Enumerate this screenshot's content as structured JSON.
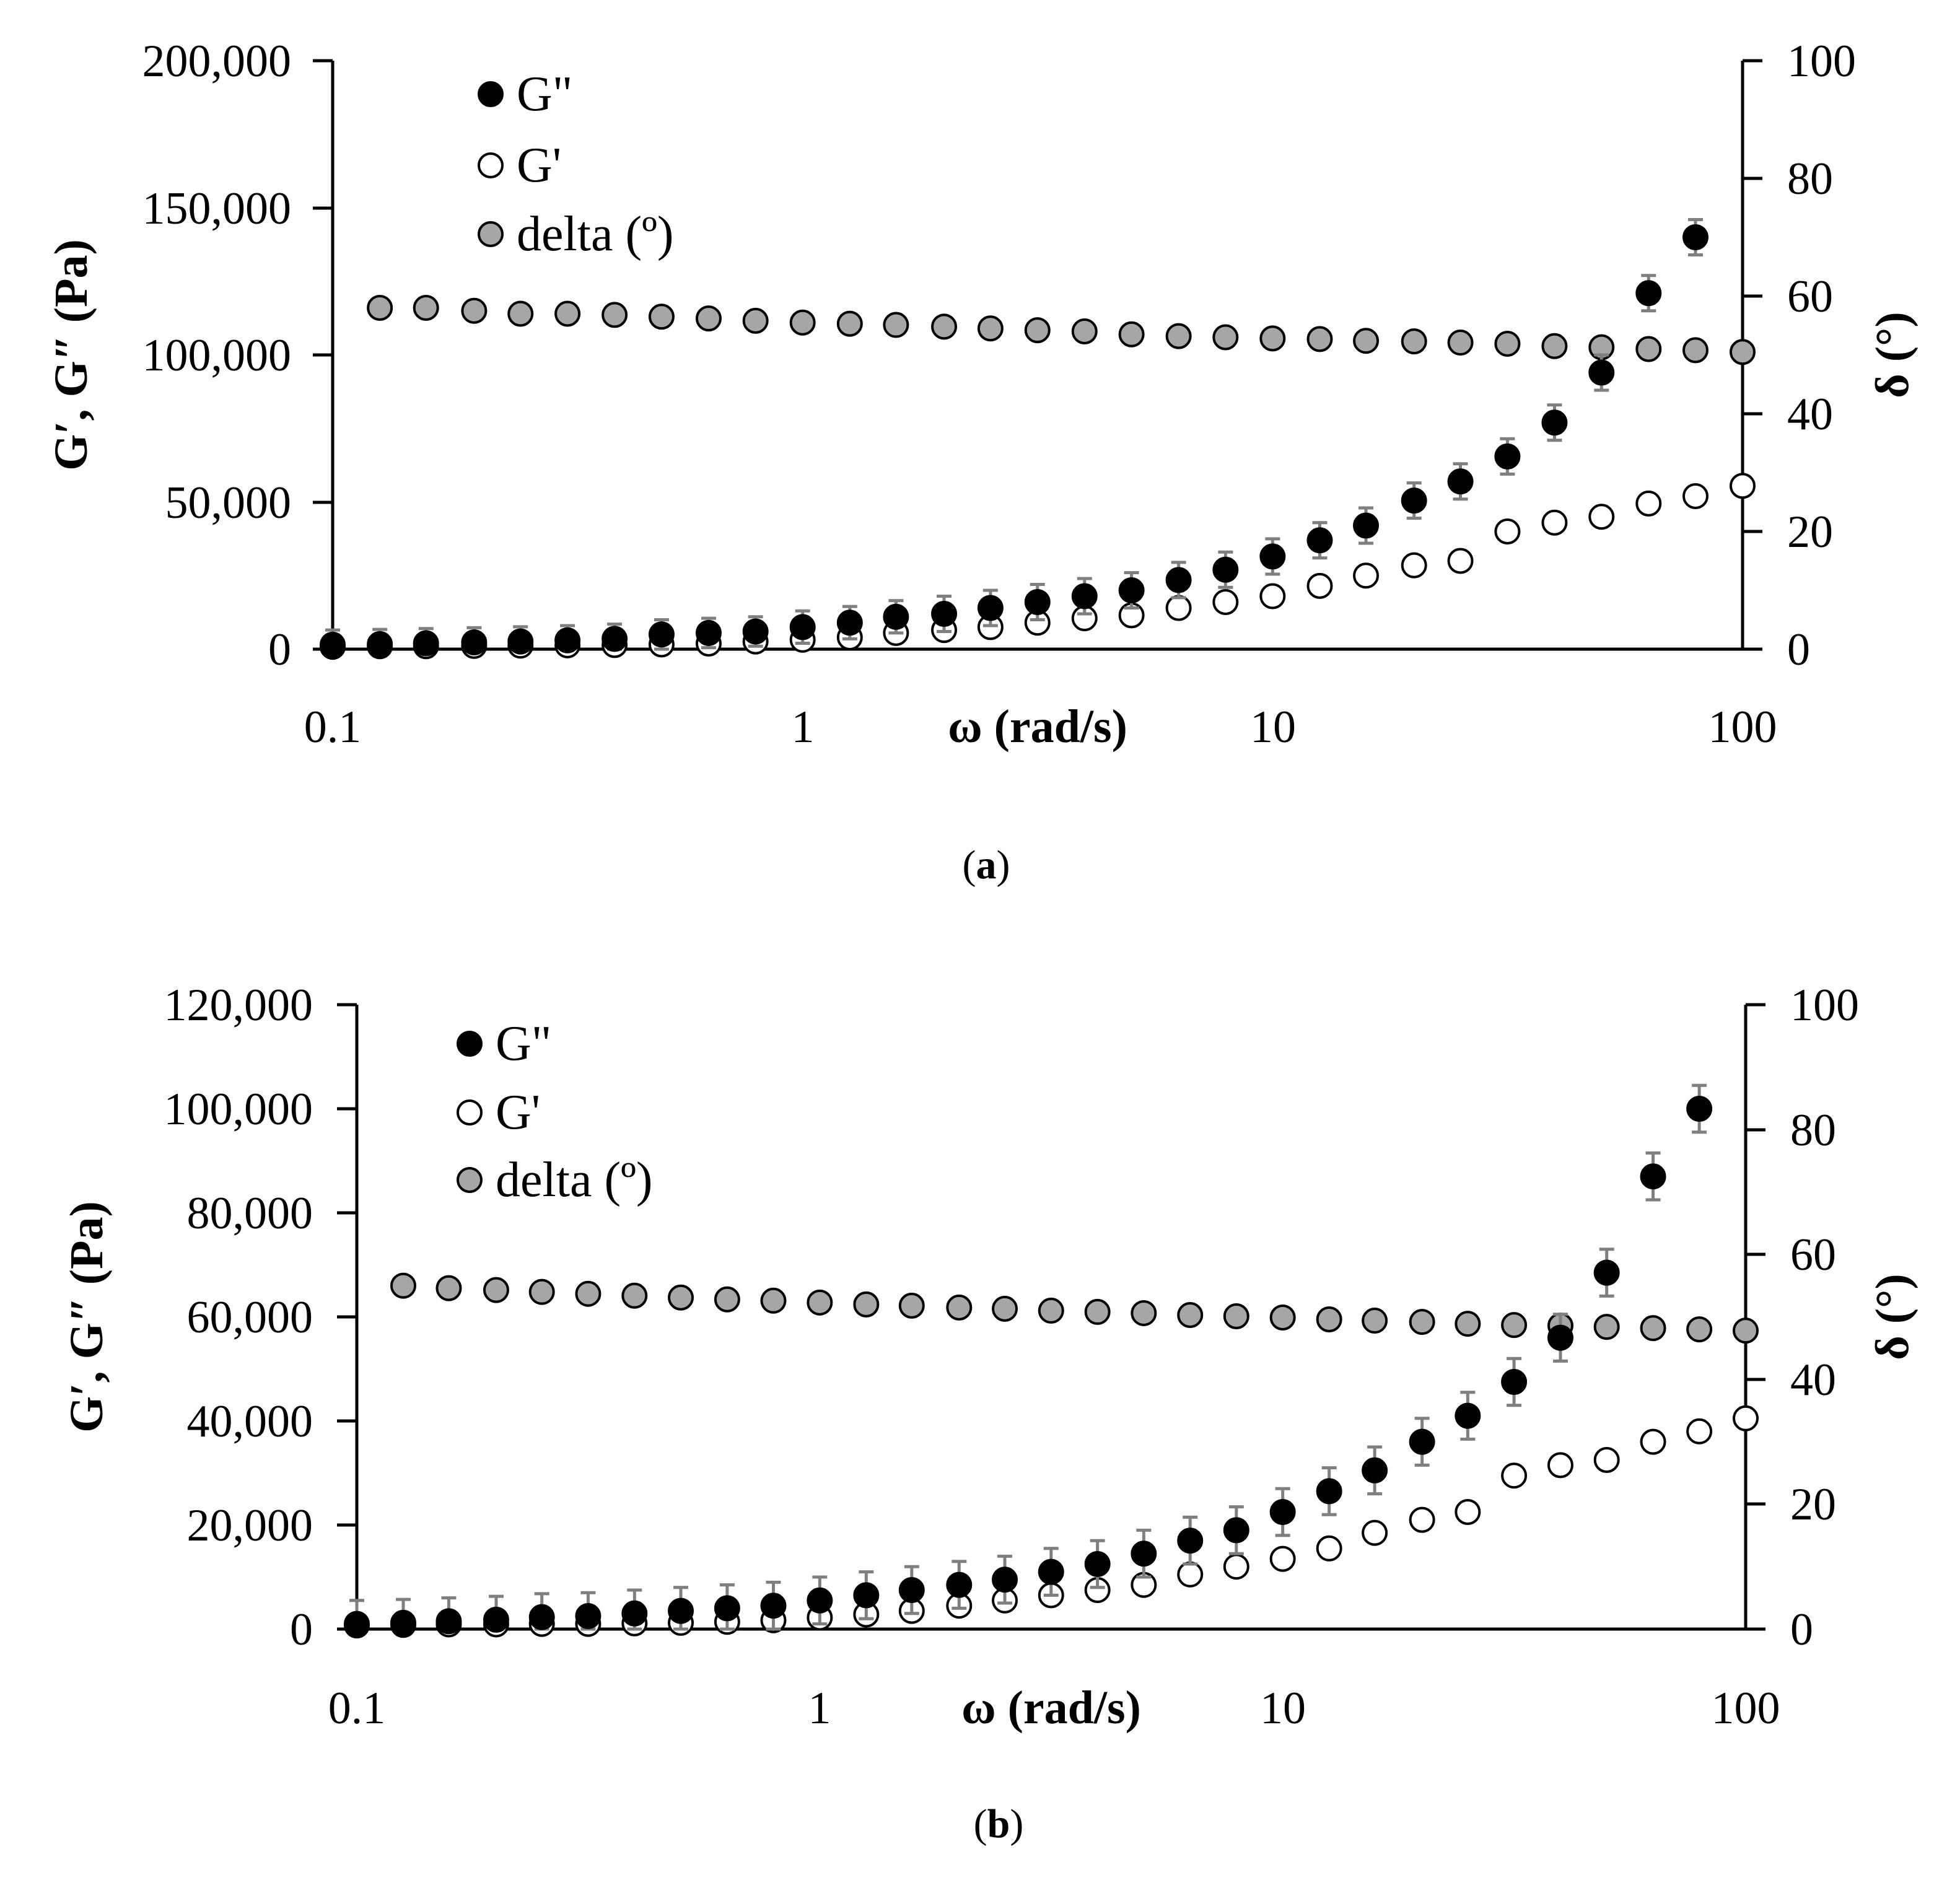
{
  "figure": {
    "panel_labels": [
      {
        "open": "(",
        "letter": "a",
        "close": ")"
      },
      {
        "open": "(",
        "letter": "b",
        "close": ")"
      }
    ]
  },
  "colors": {
    "g_double_prime_fill": "#000000",
    "g_prime_fill": "#ffffff",
    "delta_fill": "#a6a6a6",
    "marker_stroke": "#000000",
    "error_bar": "#7f7f7f",
    "axis": "#000000"
  },
  "chart_data": [
    {
      "type": "scatter",
      "panel": "a",
      "xlabel": "ω (rad/s)",
      "ylabel": "G′, G″ (Pa)",
      "y2label": "δ (°)",
      "xscale": "log",
      "xlim": [
        0.1,
        100
      ],
      "ylim": [
        0,
        200000
      ],
      "y2lim": [
        0,
        100
      ],
      "x_ticks": [
        "0.1",
        "1",
        "10",
        "100"
      ],
      "y_ticks": [
        "0",
        "50,000",
        "100,000",
        "150,000",
        "200,000"
      ],
      "y2_ticks": [
        "0",
        "20",
        "40",
        "60",
        "80",
        "100"
      ],
      "legend": [
        "G\"",
        "G'",
        "delta (º)"
      ],
      "x": [
        0.1,
        0.126,
        0.158,
        0.2,
        0.251,
        0.316,
        0.398,
        0.501,
        0.631,
        0.794,
        1.0,
        1.26,
        1.58,
        2.0,
        2.51,
        3.16,
        3.98,
        5.01,
        6.31,
        7.94,
        10.0,
        12.6,
        15.8,
        20.0,
        25.1,
        31.6,
        39.8,
        50.1,
        63.1,
        79.4,
        100.0
      ],
      "series": [
        {
          "name": "G\"",
          "axis": "left",
          "marker": "filled",
          "values": [
            1500,
            1700,
            2000,
            2300,
            2600,
            3000,
            3500,
            5000,
            5500,
            6000,
            7500,
            9000,
            11000,
            12000,
            14000,
            16000,
            18000,
            20000,
            23500,
            27000,
            31500,
            37000,
            42000,
            50500,
            57000,
            65500,
            77000,
            94000,
            121000,
            140000,
            null
          ],
          "error": [
            5000,
            5000,
            5000,
            5000,
            5000,
            5000,
            5000,
            5000,
            5000,
            5000,
            5500,
            5500,
            5500,
            6000,
            6000,
            6000,
            6000,
            6000,
            6000,
            6000,
            6000,
            6000,
            6000,
            6000,
            6000,
            6000,
            6000,
            6000,
            6000,
            6000,
            null
          ]
        },
        {
          "name": "G'",
          "axis": "left",
          "marker": "open",
          "values": [
            800,
            1000,
            1000,
            1100,
            1200,
            1300,
            1400,
            1600,
            1900,
            2600,
            3200,
            4000,
            5500,
            6500,
            7500,
            9000,
            10500,
            11500,
            14000,
            16000,
            18000,
            21500,
            25000,
            28500,
            30000,
            40000,
            43000,
            45000,
            49500,
            52000,
            55500
          ],
          "error": []
        },
        {
          "name": "delta (º)",
          "axis": "right",
          "marker": "gray",
          "values": [
            null,
            58,
            58,
            57.5,
            57,
            57,
            56.8,
            56.5,
            56.2,
            55.8,
            55.5,
            55.3,
            55.1,
            54.8,
            54.5,
            54.2,
            54,
            53.5,
            53.2,
            53,
            52.8,
            52.7,
            52.4,
            52.3,
            52.1,
            51.9,
            51.5,
            51.3,
            51,
            50.8,
            50.5
          ],
          "error": []
        }
      ]
    },
    {
      "type": "scatter",
      "panel": "b",
      "xlabel": "ω (rad/s)",
      "ylabel": "G′, G″ (Pa)",
      "y2label": "δ (°)",
      "xscale": "log",
      "xlim": [
        0.1,
        100
      ],
      "ylim": [
        0,
        120000
      ],
      "y2lim": [
        0,
        100
      ],
      "x_ticks": [
        "0.1",
        "1",
        "10",
        "100"
      ],
      "y_ticks": [
        "0",
        "20,000",
        "40,000",
        "60,000",
        "80,000",
        "100,000",
        "120,000"
      ],
      "y2_ticks": [
        "0",
        "20",
        "40",
        "60",
        "80",
        "100"
      ],
      "legend": [
        "G\"",
        "G'",
        "delta (º)"
      ],
      "x": [
        0.1,
        0.126,
        0.158,
        0.2,
        0.251,
        0.316,
        0.398,
        0.501,
        0.631,
        0.794,
        1.0,
        1.26,
        1.58,
        2.0,
        2.51,
        3.16,
        3.98,
        5.01,
        6.31,
        7.94,
        10.0,
        12.6,
        15.8,
        20.0,
        25.1,
        31.6,
        39.8,
        50.1,
        63.1,
        79.4,
        100.0
      ],
      "series": [
        {
          "name": "G\"",
          "axis": "left",
          "marker": "filled",
          "values": [
            1000,
            1200,
            1500,
            1800,
            2300,
            2500,
            3000,
            3500,
            4000,
            4500,
            5500,
            6500,
            7500,
            8500,
            9500,
            11000,
            12500,
            14500,
            17000,
            19000,
            22500,
            26500,
            30500,
            36000,
            41000,
            47500,
            56000,
            68500,
            87000,
            100000,
            null
          ],
          "error": [
            4500,
            4500,
            4500,
            4500,
            4500,
            4500,
            4500,
            4500,
            4500,
            4500,
            4500,
            4500,
            4500,
            4500,
            4500,
            4500,
            4500,
            4500,
            4500,
            4500,
            4500,
            4500,
            4500,
            4500,
            4500,
            4500,
            4500,
            4500,
            4500,
            4500,
            null
          ]
        },
        {
          "name": "G'",
          "axis": "left",
          "marker": "open",
          "values": [
            700,
            800,
            900,
            900,
            1000,
            1000,
            1100,
            1200,
            1400,
            1700,
            2200,
            2800,
            3500,
            4500,
            5500,
            6500,
            7500,
            8500,
            10500,
            12000,
            13500,
            15500,
            18500,
            21000,
            22500,
            29500,
            31500,
            32500,
            36000,
            38000,
            40500
          ],
          "error": []
        },
        {
          "name": "delta (º)",
          "axis": "right",
          "marker": "gray",
          "values": [
            null,
            55,
            54.6,
            54.3,
            54,
            53.7,
            53.4,
            53.1,
            52.8,
            52.6,
            52.3,
            52,
            51.8,
            51.5,
            51.3,
            51,
            50.8,
            50.6,
            50.3,
            50.1,
            49.9,
            49.6,
            49.4,
            49.2,
            48.9,
            48.7,
            48.6,
            48.4,
            48.2,
            48,
            47.8
          ],
          "error": []
        }
      ]
    }
  ]
}
